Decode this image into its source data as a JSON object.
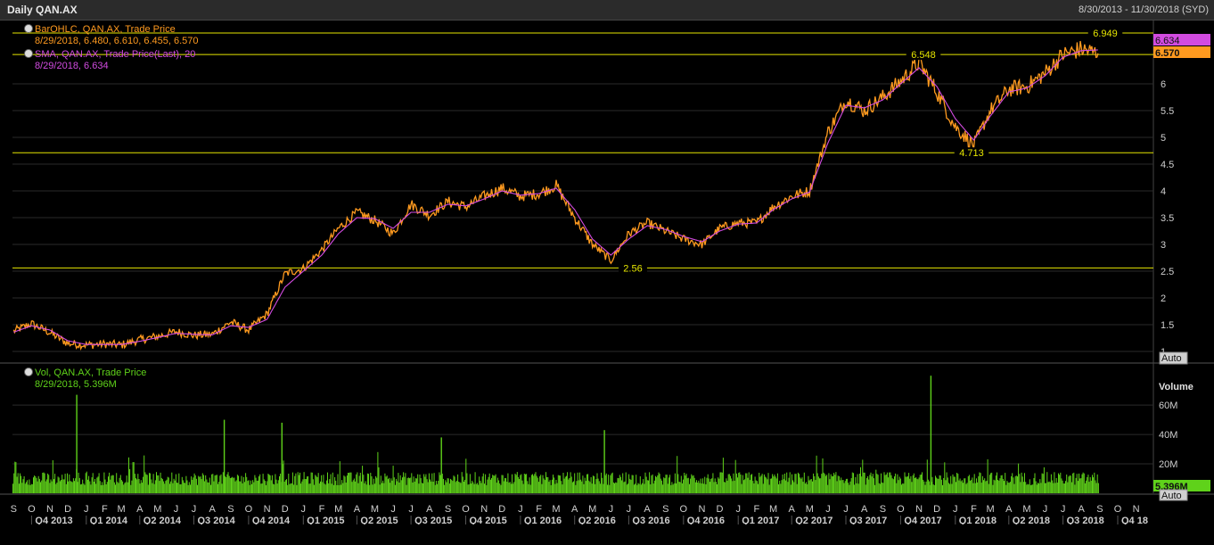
{
  "window": {
    "title": "Daily QAN.AX",
    "date_range": "8/30/2013 - 11/30/2018 (SYD)"
  },
  "colors": {
    "price": "#ff9a1f",
    "sma": "#d24be0",
    "volume": "#5fd21a",
    "level": "#e6e600",
    "grid": "#2a2a2a",
    "axis_text": "#cfcfcf"
  },
  "price_legend": {
    "series1_name": "BarOHLC, QAN.AX, Trade Price",
    "series1_values": "8/29/2018, 6.480, 6.610, 6.455, 6.570",
    "series2_name": "SMA, QAN.AX, Trade Price(Last), 20",
    "series2_values": "8/29/2018, 6.634",
    "sma_value": "6.634",
    "last_value": "6.570",
    "auto_label": "Auto"
  },
  "volume_legend": {
    "name": "Vol, QAN.AX, Trade Price",
    "values": "8/29/2018, 5.396M",
    "axis_title": "Volume",
    "last_value": "5.396M",
    "auto_label": "Auto"
  },
  "chart_data": {
    "type": "line",
    "price_axis": {
      "ylim": [
        0.8,
        7.15
      ],
      "ticks": [
        "1",
        "1.5",
        "2",
        "2.5",
        "3",
        "3.5",
        "4",
        "4.5",
        "5",
        "5.5",
        "6"
      ],
      "tick_values": [
        1,
        1.5,
        2,
        2.5,
        3,
        3.5,
        4,
        4.5,
        5,
        5.5,
        6
      ]
    },
    "volume_axis": {
      "ylim": [
        0,
        85
      ],
      "ticks": [
        "20M",
        "40M",
        "60M"
      ],
      "tick_values": [
        20,
        40,
        60
      ],
      "unit": "M"
    },
    "horizontal_levels": [
      {
        "value": 6.949,
        "label": "6.949"
      },
      {
        "value": 6.548,
        "label": "6.548"
      },
      {
        "value": 4.713,
        "label": "4.713"
      },
      {
        "value": 2.56,
        "label": "2.56"
      }
    ],
    "months": [
      "S",
      "O",
      "N",
      "D",
      "J",
      "F",
      "M",
      "A",
      "M",
      "J",
      "J",
      "A",
      "S",
      "O",
      "N",
      "D",
      "J",
      "F",
      "M",
      "A",
      "M",
      "J",
      "J",
      "A",
      "S",
      "O",
      "N",
      "D",
      "J",
      "F",
      "M",
      "A",
      "M",
      "J",
      "J",
      "A",
      "S",
      "O",
      "N",
      "D",
      "J",
      "F",
      "M",
      "A",
      "M",
      "J",
      "J",
      "A",
      "S",
      "O",
      "N",
      "D",
      "J",
      "F",
      "M",
      "A",
      "M",
      "J",
      "J",
      "A",
      "S",
      "O",
      "N"
    ],
    "quarters": [
      "Q4 2013",
      "Q1 2014",
      "Q2 2014",
      "Q3 2014",
      "Q4 2014",
      "Q1 2015",
      "Q2 2015",
      "Q3 2015",
      "Q4 2015",
      "Q1 2016",
      "Q2 2016",
      "Q3 2016",
      "Q4 2016",
      "Q1 2017",
      "Q2 2017",
      "Q3 2017",
      "Q4 2017",
      "Q1 2018",
      "Q2 2018",
      "Q3 2018",
      "Q4 18"
    ],
    "series": [
      {
        "name": "BarOHLC, QAN.AX, Trade Price",
        "x": [
          "2013-09-01",
          "2013-10-01",
          "2013-11-01",
          "2013-12-01",
          "2014-01-01",
          "2014-02-01",
          "2014-03-01",
          "2014-04-01",
          "2014-05-01",
          "2014-06-01",
          "2014-07-01",
          "2014-08-01",
          "2014-09-01",
          "2014-10-01",
          "2014-11-01",
          "2014-12-01",
          "2015-01-01",
          "2015-02-01",
          "2015-03-01",
          "2015-04-01",
          "2015-05-01",
          "2015-06-01",
          "2015-07-01",
          "2015-08-01",
          "2015-09-01",
          "2015-10-01",
          "2015-11-01",
          "2015-12-01",
          "2016-01-01",
          "2016-02-01",
          "2016-03-01",
          "2016-04-01",
          "2016-05-01",
          "2016-06-01",
          "2016-07-01",
          "2016-08-01",
          "2016-09-01",
          "2016-10-01",
          "2016-11-01",
          "2016-12-01",
          "2017-01-01",
          "2017-02-01",
          "2017-03-01",
          "2017-04-01",
          "2017-05-01",
          "2017-06-01",
          "2017-07-01",
          "2017-08-01",
          "2017-09-01",
          "2017-10-01",
          "2017-11-01",
          "2017-12-01",
          "2018-01-01",
          "2018-02-01",
          "2018-03-01",
          "2018-04-01",
          "2018-05-01",
          "2018-06-01",
          "2018-07-01",
          "2018-08-01",
          "2018-08-29"
        ],
        "values": [
          1.38,
          1.52,
          1.35,
          1.15,
          1.12,
          1.14,
          1.12,
          1.22,
          1.28,
          1.37,
          1.3,
          1.32,
          1.55,
          1.4,
          1.7,
          2.45,
          2.55,
          2.9,
          3.3,
          3.6,
          3.45,
          3.2,
          3.75,
          3.55,
          3.8,
          3.7,
          3.9,
          4.05,
          3.9,
          3.95,
          4.1,
          3.5,
          3.0,
          2.7,
          3.2,
          3.4,
          3.25,
          3.1,
          3.0,
          3.3,
          3.4,
          3.4,
          3.7,
          3.9,
          4.0,
          5.1,
          5.7,
          5.5,
          5.75,
          6.05,
          6.4,
          5.85,
          5.2,
          4.85,
          5.5,
          5.9,
          5.95,
          6.2,
          6.55,
          6.65,
          6.57
        ]
      },
      {
        "name": "SMA, QAN.AX, Trade Price(Last), 20",
        "x": [
          "2013-09-01",
          "2013-10-01",
          "2013-11-01",
          "2013-12-01",
          "2014-01-01",
          "2014-02-01",
          "2014-03-01",
          "2014-04-01",
          "2014-05-01",
          "2014-06-01",
          "2014-07-01",
          "2014-08-01",
          "2014-09-01",
          "2014-10-01",
          "2014-11-01",
          "2014-12-01",
          "2015-01-01",
          "2015-02-01",
          "2015-03-01",
          "2015-04-01",
          "2015-05-01",
          "2015-06-01",
          "2015-07-01",
          "2015-08-01",
          "2015-09-01",
          "2015-10-01",
          "2015-11-01",
          "2015-12-01",
          "2016-01-01",
          "2016-02-01",
          "2016-03-01",
          "2016-04-01",
          "2016-05-01",
          "2016-06-01",
          "2016-07-01",
          "2016-08-01",
          "2016-09-01",
          "2016-10-01",
          "2016-11-01",
          "2016-12-01",
          "2017-01-01",
          "2017-02-01",
          "2017-03-01",
          "2017-04-01",
          "2017-05-01",
          "2017-06-01",
          "2017-07-01",
          "2017-08-01",
          "2017-09-01",
          "2017-10-01",
          "2017-11-01",
          "2017-12-01",
          "2018-01-01",
          "2018-02-01",
          "2018-03-01",
          "2018-04-01",
          "2018-05-01",
          "2018-06-01",
          "2018-07-01",
          "2018-08-01",
          "2018-08-29"
        ],
        "values": [
          1.36,
          1.48,
          1.4,
          1.2,
          1.13,
          1.13,
          1.13,
          1.19,
          1.26,
          1.34,
          1.32,
          1.31,
          1.48,
          1.45,
          1.6,
          2.2,
          2.5,
          2.8,
          3.2,
          3.5,
          3.48,
          3.3,
          3.6,
          3.6,
          3.75,
          3.72,
          3.85,
          4.0,
          3.92,
          3.95,
          4.05,
          3.65,
          3.1,
          2.8,
          3.1,
          3.35,
          3.28,
          3.15,
          3.05,
          3.25,
          3.38,
          3.4,
          3.65,
          3.85,
          3.98,
          4.9,
          5.6,
          5.55,
          5.7,
          6.0,
          6.3,
          5.95,
          5.35,
          4.95,
          5.4,
          5.85,
          5.92,
          6.15,
          6.5,
          6.62,
          6.634
        ]
      }
    ],
    "volume": {
      "name": "Vol, QAN.AX, Trade Price",
      "typical": 10,
      "last": 5.396,
      "spikes": [
        {
          "x": "2013-12-15",
          "value": 67
        },
        {
          "x": "2014-08-20",
          "value": 50
        },
        {
          "x": "2014-11-25",
          "value": 48
        },
        {
          "x": "2015-08-20",
          "value": 38
        },
        {
          "x": "2016-05-20",
          "value": 43
        },
        {
          "x": "2017-11-20",
          "value": 80
        }
      ]
    }
  }
}
